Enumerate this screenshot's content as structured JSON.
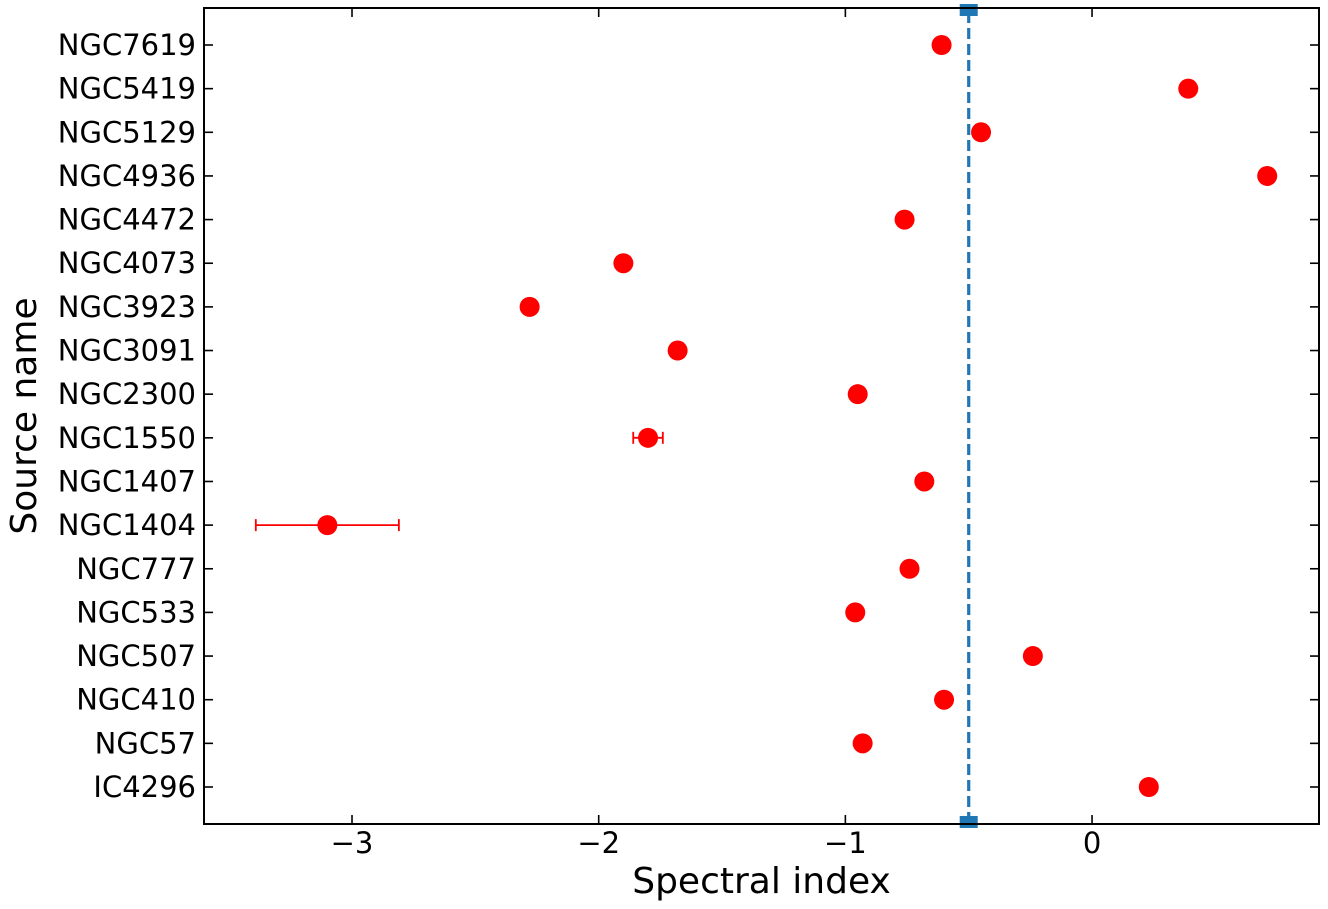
{
  "chart_data": {
    "type": "scatter",
    "orientation": "horizontal",
    "xlabel": "Spectral index",
    "ylabel": "Source name",
    "xlim": [
      -3.6,
      0.92
    ],
    "xticks": [
      -3,
      -2,
      -1,
      0
    ],
    "xtick_labels": [
      "−3",
      "−2",
      "−1",
      "0"
    ],
    "grid": false,
    "colors": {
      "points": "#ff0000",
      "reference_line": "#1f77b4",
      "axes": "#000000"
    },
    "reference_line": {
      "x": -0.5,
      "style": "dashed",
      "marker": "square"
    },
    "categories": [
      "IC4296",
      "NGC57",
      "NGC410",
      "NGC507",
      "NGC533",
      "NGC777",
      "NGC1404",
      "NGC1407",
      "NGC1550",
      "NGC2300",
      "NGC3091",
      "NGC3923",
      "NGC4073",
      "NGC4472",
      "NGC4936",
      "NGC5129",
      "NGC5419",
      "NGC7619"
    ],
    "series": [
      {
        "values": [
          0.23,
          -0.93,
          -0.6,
          -0.24,
          -0.96,
          -0.74,
          -3.1,
          -0.68,
          -1.8,
          -0.95,
          -1.68,
          -2.28,
          -1.9,
          -0.76,
          0.71,
          -0.45,
          0.39,
          -0.61
        ],
        "xerr": [
          0,
          0,
          0,
          0,
          0,
          0,
          0.29,
          0,
          0.06,
          0,
          0,
          0,
          0,
          0,
          0,
          0,
          0,
          0
        ]
      }
    ]
  }
}
